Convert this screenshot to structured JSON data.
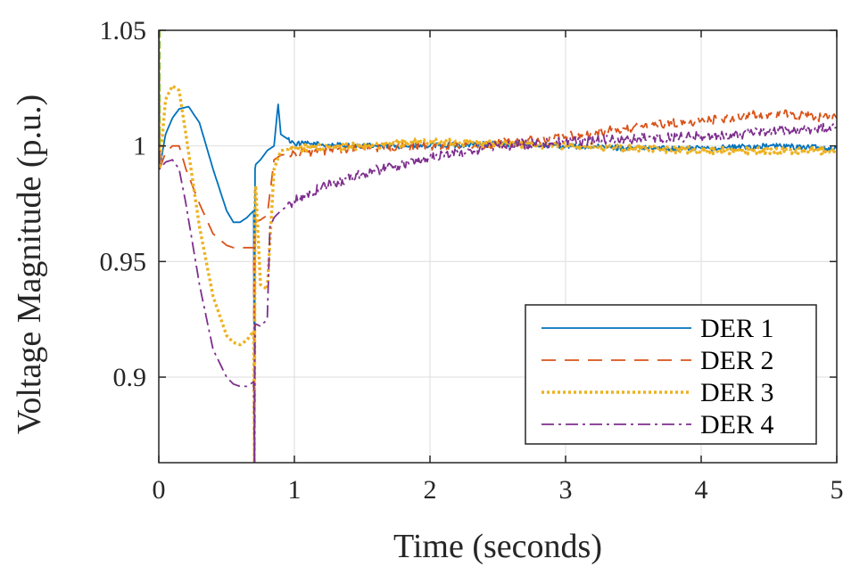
{
  "chart_data": {
    "type": "line",
    "title": "",
    "xlabel": "Time (seconds)",
    "ylabel": "Voltage Magnitude (p.u.)",
    "xlim": [
      0,
      5
    ],
    "ylim": [
      0.863,
      1.05
    ],
    "xticks": [
      0,
      1,
      2,
      3,
      4,
      5
    ],
    "xtick_labels": [
      "0",
      "1",
      "2",
      "3",
      "4",
      "5"
    ],
    "yticks": [
      0.9,
      0.95,
      1,
      1.05
    ],
    "ytick_labels": [
      "0.9",
      "0.95",
      "1",
      "1.05"
    ],
    "grid": true,
    "legend_position": "bottom-right",
    "series": [
      {
        "name": "DER 1",
        "color": "#0072BD",
        "dash": "solid",
        "noise": 0.0012,
        "x": [
          0,
          0.005,
          0.05,
          0.1,
          0.15,
          0.22,
          0.3,
          0.4,
          0.5,
          0.55,
          0.6,
          0.65,
          0.7,
          0.705,
          0.71,
          0.715,
          0.75,
          0.8,
          0.85,
          0.88,
          0.9,
          0.95,
          1.0,
          1.5,
          2.0,
          2.5,
          3.0,
          3.5,
          4.0,
          4.5,
          5.0
        ],
        "y": [
          1.05,
          0.99,
          1.005,
          1.012,
          1.016,
          1.017,
          1.01,
          0.99,
          0.972,
          0.967,
          0.967,
          0.969,
          0.972,
          0.863,
          0.99,
          0.992,
          0.994,
          0.998,
          1.0,
          1.018,
          1.005,
          1.003,
          1.001,
          1.0,
          1.0,
          1.001,
          1.0,
          0.999,
          0.999,
          1.0,
          0.999
        ]
      },
      {
        "name": "DER 2",
        "color": "#D95319",
        "dash": "16,10",
        "noise": 0.002,
        "x": [
          0,
          0.005,
          0.05,
          0.1,
          0.15,
          0.2,
          0.3,
          0.4,
          0.5,
          0.55,
          0.6,
          0.65,
          0.7,
          0.705,
          0.71,
          0.715,
          0.75,
          0.8,
          0.85,
          0.9,
          1.0,
          1.5,
          2.0,
          2.5,
          3.0,
          3.5,
          4.0,
          4.5,
          5.0
        ],
        "y": [
          1.05,
          0.99,
          0.997,
          1.0,
          1.0,
          0.99,
          0.975,
          0.962,
          0.957,
          0.956,
          0.956,
          0.956,
          0.956,
          0.863,
          0.966,
          0.967,
          0.968,
          0.97,
          0.994,
          0.996,
          0.997,
          0.999,
          1.0,
          1.001,
          1.004,
          1.008,
          1.011,
          1.014,
          1.012
        ]
      },
      {
        "name": "DER 3",
        "color": "#EDB120",
        "dash": "3,3",
        "noise": 0.0015,
        "x": [
          0,
          0.005,
          0.05,
          0.1,
          0.15,
          0.2,
          0.3,
          0.4,
          0.5,
          0.55,
          0.6,
          0.65,
          0.7,
          0.705,
          0.71,
          0.715,
          0.75,
          0.8,
          0.85,
          0.9,
          1.0,
          1.5,
          2.0,
          2.5,
          3.0,
          3.5,
          4.0,
          4.5,
          5.0
        ],
        "y": [
          1.05,
          0.99,
          1.02,
          1.026,
          1.024,
          1.005,
          0.965,
          0.935,
          0.918,
          0.915,
          0.914,
          0.916,
          0.92,
          0.863,
          0.98,
          0.982,
          0.94,
          0.938,
          0.99,
          0.998,
          0.999,
          1.0,
          1.002,
          1.001,
          1.0,
          0.999,
          0.998,
          0.998,
          0.998
        ]
      },
      {
        "name": "DER 4",
        "color": "#7E2F8E",
        "dash": "14,5,3,5",
        "noise": 0.0022,
        "x": [
          0,
          0.005,
          0.05,
          0.1,
          0.15,
          0.2,
          0.3,
          0.4,
          0.5,
          0.55,
          0.6,
          0.65,
          0.7,
          0.705,
          0.71,
          0.715,
          0.75,
          0.8,
          0.82,
          0.85,
          0.9,
          1.0,
          1.2,
          1.5,
          2.0,
          2.5,
          3.0,
          3.5,
          4.0,
          4.5,
          5.0
        ],
        "y": [
          1.05,
          0.99,
          0.993,
          0.994,
          0.99,
          0.975,
          0.94,
          0.912,
          0.9,
          0.897,
          0.896,
          0.896,
          0.898,
          0.863,
          0.923,
          0.923,
          0.922,
          0.925,
          0.965,
          0.969,
          0.972,
          0.976,
          0.982,
          0.988,
          0.995,
          1.0,
          1.002,
          1.003,
          1.004,
          1.006,
          1.008
        ]
      }
    ]
  }
}
